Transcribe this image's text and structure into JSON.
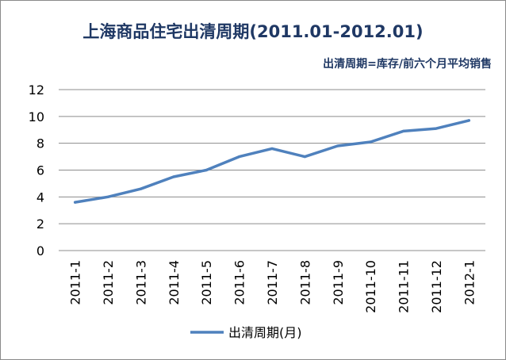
{
  "chart_data": {
    "type": "line",
    "title": "上海商品住宅出清周期(2011.01-2012.01)",
    "subtitle": "出清周期=库存/前六个月平均销售",
    "xlabel": "",
    "ylabel": "",
    "categories": [
      "2011-1",
      "2011-2",
      "2011-3",
      "2011-4",
      "2011-5",
      "2011-6",
      "2011-7",
      "2011-8",
      "2011-9",
      "2011-10",
      "2011-11",
      "2011-12",
      "2012-1"
    ],
    "series": [
      {
        "name": "出清周期(月)",
        "values": [
          3.6,
          4.0,
          4.6,
          5.5,
          6.0,
          7.0,
          7.6,
          7.0,
          7.8,
          8.1,
          8.9,
          9.1,
          9.7
        ]
      }
    ],
    "yticks": [
      "0",
      "2",
      "4",
      "6",
      "8",
      "10",
      "12"
    ],
    "ylim": [
      0,
      12
    ],
    "grid": true,
    "legend_position": "bottom",
    "colors": {
      "line": "#4f81bd",
      "grid": "#8c8c8c",
      "title": "#1f3864"
    }
  }
}
